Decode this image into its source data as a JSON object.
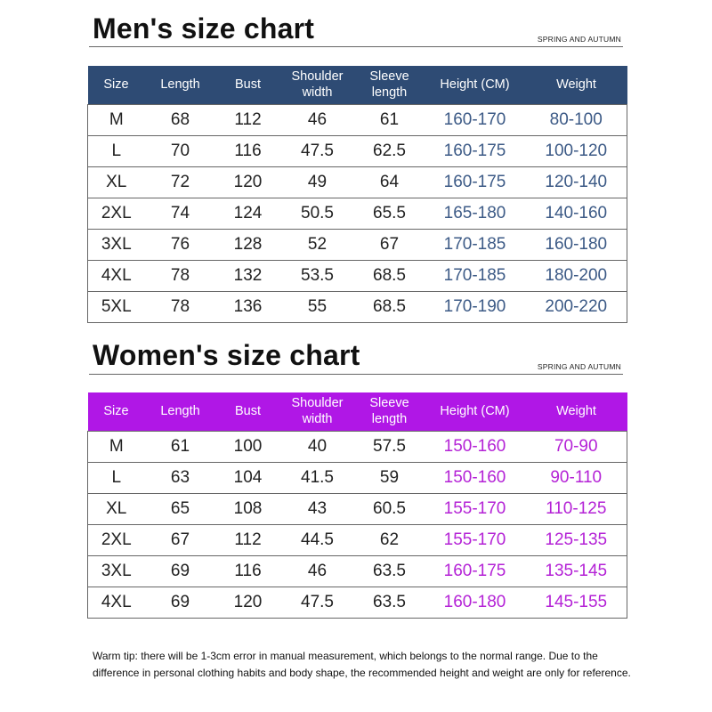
{
  "men": {
    "title": "Men's size chart",
    "subtag": "SPRING AND AUTUMN",
    "header_color": "#2e4b74",
    "highlight_color": "#3c5a86",
    "columns": [
      "Size",
      "Length",
      "Bust",
      "Shoulder width",
      "Sleeve length",
      "Height (CM)",
      "Weight"
    ],
    "rows": [
      [
        "M",
        "68",
        "112",
        "46",
        "61",
        "160-170",
        "80-100"
      ],
      [
        "L",
        "70",
        "116",
        "47.5",
        "62.5",
        "160-175",
        "100-120"
      ],
      [
        "XL",
        "72",
        "120",
        "49",
        "64",
        "160-175",
        "120-140"
      ],
      [
        "2XL",
        "74",
        "124",
        "50.5",
        "65.5",
        "165-180",
        "140-160"
      ],
      [
        "3XL",
        "76",
        "128",
        "52",
        "67",
        "170-185",
        "160-180"
      ],
      [
        "4XL",
        "78",
        "132",
        "53.5",
        "68.5",
        "170-185",
        "180-200"
      ],
      [
        "5XL",
        "78",
        "136",
        "55",
        "68.5",
        "170-190",
        "200-220"
      ]
    ]
  },
  "women": {
    "title": "Women's size chart",
    "subtag": "SPRING AND AUTUMN",
    "header_color": "#b017e6",
    "highlight_color": "#b422d6",
    "columns": [
      "Size",
      "Length",
      "Bust",
      "Shoulder width",
      "Sleeve length",
      "Height (CM)",
      "Weight"
    ],
    "rows": [
      [
        "M",
        "61",
        "100",
        "40",
        "57.5",
        "150-160",
        "70-90"
      ],
      [
        "L",
        "63",
        "104",
        "41.5",
        "59",
        "150-160",
        "90-110"
      ],
      [
        "XL",
        "65",
        "108",
        "43",
        "60.5",
        "155-170",
        "110-125"
      ],
      [
        "2XL",
        "67",
        "112",
        "44.5",
        "62",
        "155-170",
        "125-135"
      ],
      [
        "3XL",
        "69",
        "116",
        "46",
        "63.5",
        "160-175",
        "135-145"
      ],
      [
        "4XL",
        "69",
        "120",
        "47.5",
        "63.5",
        "160-180",
        "145-155"
      ]
    ]
  },
  "tip": "Warm tip: there will be 1-3cm error in manual measurement, which belongs to the normal range. Due to the difference in personal clothing habits and body shape, the recommended height and weight are only for reference."
}
